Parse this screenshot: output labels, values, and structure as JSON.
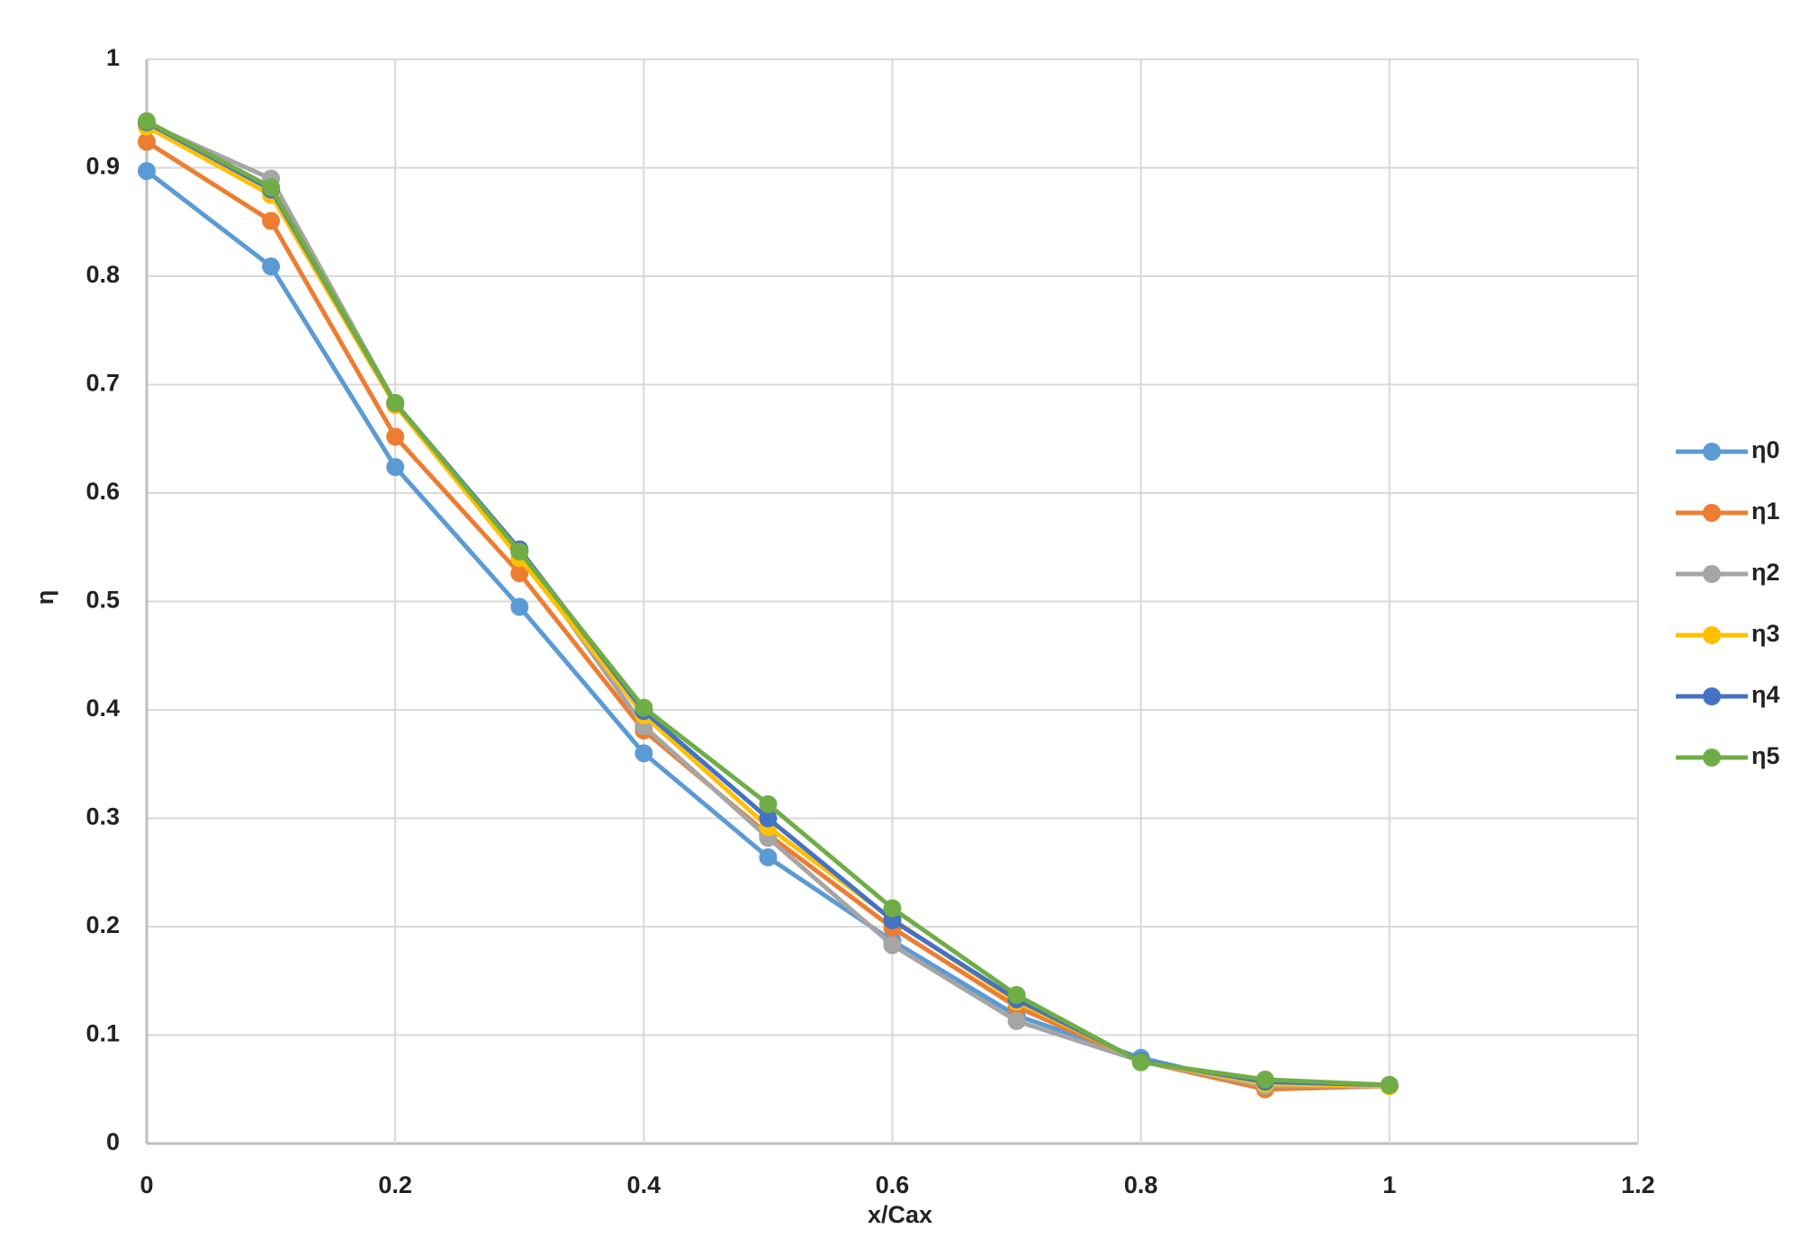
{
  "chart_data": {
    "type": "line",
    "x_label": "x/Cax",
    "y_label": "η",
    "x": [
      0,
      0.1,
      0.2,
      0.3,
      0.4,
      0.5,
      0.6,
      0.7,
      0.8,
      0.9,
      1
    ],
    "series": [
      {
        "name": "η0",
        "color": "#5b9bd5",
        "values": [
          0.897,
          0.809,
          0.624,
          0.495,
          0.36,
          0.264,
          0.187,
          0.118,
          0.079,
          0.052,
          0.053
        ]
      },
      {
        "name": "η1",
        "color": "#ed7d31",
        "values": [
          0.924,
          0.851,
          0.652,
          0.526,
          0.381,
          0.285,
          0.199,
          0.126,
          0.076,
          0.05,
          0.053
        ]
      },
      {
        "name": "η2",
        "color": "#a5a5a5",
        "values": [
          0.941,
          0.89,
          0.683,
          0.546,
          0.385,
          0.282,
          0.183,
          0.113,
          0.076,
          0.053,
          0.053
        ]
      },
      {
        "name": "η3",
        "color": "#ffc000",
        "values": [
          0.938,
          0.875,
          0.681,
          0.54,
          0.395,
          0.292,
          0.207,
          0.131,
          0.076,
          0.055,
          0.053
        ]
      },
      {
        "name": "η4",
        "color": "#4472c4",
        "values": [
          0.942,
          0.88,
          0.683,
          0.548,
          0.399,
          0.3,
          0.206,
          0.133,
          0.076,
          0.057,
          0.054
        ]
      },
      {
        "name": "η5",
        "color": "#70ad47",
        "values": [
          0.943,
          0.882,
          0.683,
          0.546,
          0.402,
          0.313,
          0.217,
          0.137,
          0.075,
          0.059,
          0.054
        ]
      }
    ],
    "xlim": [
      0,
      1.2
    ],
    "xticks": [
      0,
      0.2,
      0.4,
      0.6,
      0.8,
      1,
      1.2
    ],
    "ylim": [
      0,
      1
    ],
    "yticks": [
      0,
      0.1,
      0.2,
      0.3,
      0.4,
      0.5,
      0.6,
      0.7,
      0.8,
      0.9,
      1
    ],
    "grid": true,
    "legend": "right"
  }
}
